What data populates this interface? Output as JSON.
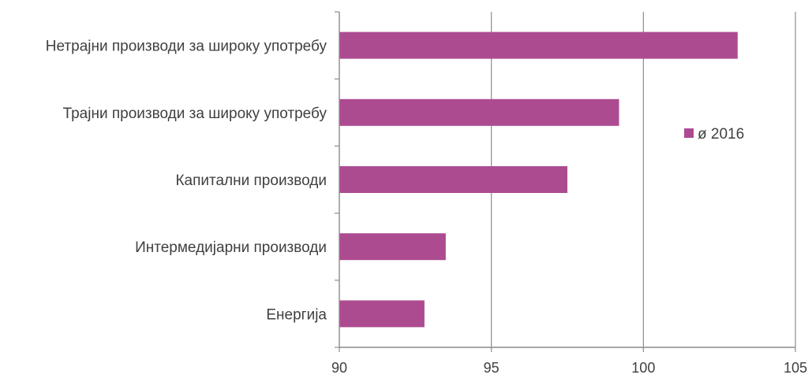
{
  "chart_data": {
    "type": "bar",
    "orientation": "horizontal",
    "categories": [
      "Нетрајни производи за широку употребу",
      "Трајни производи за широку употребу",
      "Капитални производи",
      "Интермедијарни производи",
      "Енергија"
    ],
    "series": [
      {
        "name": "ø 2016",
        "values": [
          103.1,
          99.2,
          97.5,
          93.5,
          92.8
        ]
      }
    ],
    "xlim": [
      90,
      105
    ],
    "xticks": [
      90,
      95,
      100,
      105
    ],
    "tick_labels": [
      "90",
      "95",
      "100",
      "105"
    ],
    "grid": true,
    "legend_position": "right",
    "colors": {
      "bar": "#ad4b91",
      "grid": "#8c8c8c",
      "axis": "#8c8c8c",
      "text": "#404040"
    }
  }
}
